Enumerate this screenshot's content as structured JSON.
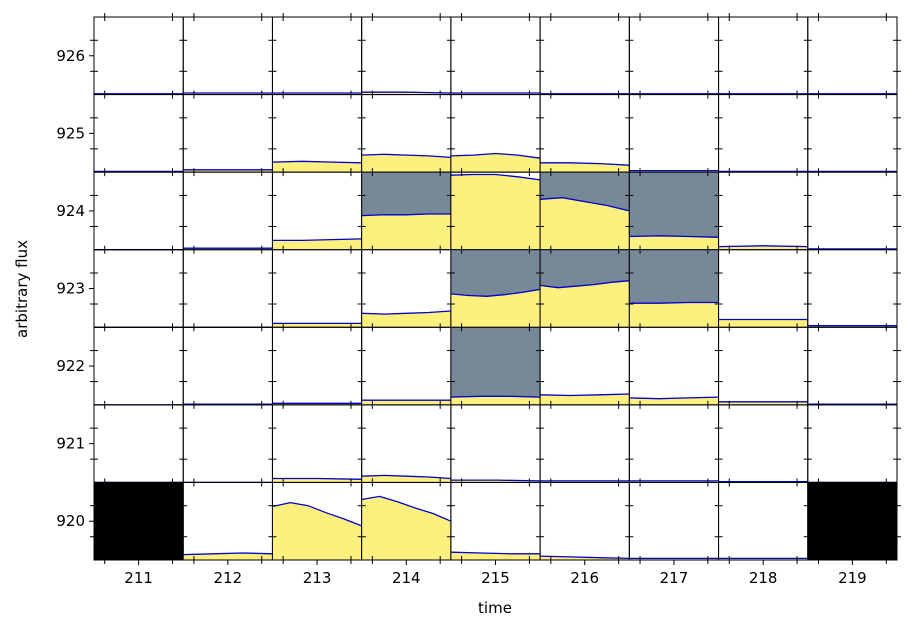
{
  "chart_data": {
    "type": "area",
    "description_role": "pixel-level flux grid",
    "xlabel": "time",
    "ylabel": "arbitrary flux",
    "x_tick_labels": [
      "211",
      "212",
      "213",
      "214",
      "215",
      "216",
      "217",
      "218",
      "219"
    ],
    "y_tick_labels": [
      "920",
      "921",
      "922",
      "923",
      "924",
      "925",
      "926"
    ],
    "columns": [
      211,
      212,
      213,
      214,
      215,
      216,
      217,
      218,
      219
    ],
    "rows": [
      926,
      925,
      924,
      923,
      922,
      921,
      920
    ],
    "colors": {
      "fill": "#fdf07e",
      "line": "#0000cc",
      "mask": "#778899",
      "nodata": "#000000",
      "frame": "#000000"
    },
    "cells": [
      {
        "row": 926,
        "col": 211,
        "mask": false,
        "nodata": false,
        "flux": [
          0.01,
          0.01
        ]
      },
      {
        "row": 926,
        "col": 212,
        "mask": false,
        "nodata": false,
        "flux": [
          0.02,
          0.02
        ]
      },
      {
        "row": 926,
        "col": 213,
        "mask": false,
        "nodata": false,
        "flux": [
          0.02,
          0.02
        ]
      },
      {
        "row": 926,
        "col": 214,
        "mask": false,
        "nodata": false,
        "flux": [
          0.03,
          0.03,
          0.02
        ]
      },
      {
        "row": 926,
        "col": 215,
        "mask": false,
        "nodata": false,
        "flux": [
          0.02,
          0.02
        ]
      },
      {
        "row": 926,
        "col": 216,
        "mask": false,
        "nodata": false,
        "flux": [
          0.01,
          0.01
        ]
      },
      {
        "row": 926,
        "col": 217,
        "mask": false,
        "nodata": false,
        "flux": [
          0.01,
          0.01
        ]
      },
      {
        "row": 926,
        "col": 218,
        "mask": false,
        "nodata": false,
        "flux": [
          0.01,
          0.01
        ]
      },
      {
        "row": 926,
        "col": 219,
        "mask": false,
        "nodata": false,
        "flux": [
          0.01,
          0.01
        ]
      },
      {
        "row": 925,
        "col": 211,
        "mask": false,
        "nodata": false,
        "flux": [
          0.01,
          0.01
        ]
      },
      {
        "row": 925,
        "col": 212,
        "mask": false,
        "nodata": false,
        "flux": [
          0.03,
          0.03
        ]
      },
      {
        "row": 925,
        "col": 213,
        "mask": false,
        "nodata": false,
        "flux": [
          0.13,
          0.14,
          0.13,
          0.12
        ]
      },
      {
        "row": 925,
        "col": 214,
        "mask": false,
        "nodata": false,
        "flux": [
          0.22,
          0.23,
          0.22,
          0.21,
          0.19
        ]
      },
      {
        "row": 925,
        "col": 215,
        "mask": false,
        "nodata": false,
        "flux": [
          0.21,
          0.22,
          0.24,
          0.22,
          0.18
        ]
      },
      {
        "row": 925,
        "col": 216,
        "mask": false,
        "nodata": false,
        "flux": [
          0.12,
          0.12,
          0.11,
          0.09
        ]
      },
      {
        "row": 925,
        "col": 217,
        "mask": false,
        "nodata": false,
        "flux": [
          0.02,
          0.02
        ]
      },
      {
        "row": 925,
        "col": 218,
        "mask": false,
        "nodata": false,
        "flux": [
          0.01,
          0.01
        ]
      },
      {
        "row": 925,
        "col": 219,
        "mask": false,
        "nodata": false,
        "flux": [
          0.01,
          0.01
        ]
      },
      {
        "row": 924,
        "col": 211,
        "mask": false,
        "nodata": false,
        "flux": [
          0.0,
          0.0
        ]
      },
      {
        "row": 924,
        "col": 212,
        "mask": false,
        "nodata": false,
        "flux": [
          0.02,
          0.02
        ]
      },
      {
        "row": 924,
        "col": 213,
        "mask": false,
        "nodata": false,
        "flux": [
          0.12,
          0.12,
          0.13,
          0.14
        ]
      },
      {
        "row": 924,
        "col": 214,
        "mask": true,
        "nodata": false,
        "flux": [
          0.44,
          0.45,
          0.45,
          0.46,
          0.46
        ]
      },
      {
        "row": 924,
        "col": 215,
        "mask": false,
        "nodata": false,
        "flux": [
          0.96,
          0.97,
          0.97,
          0.94,
          0.9
        ]
      },
      {
        "row": 924,
        "col": 216,
        "mask": true,
        "nodata": false,
        "flux": [
          0.65,
          0.67,
          0.62,
          0.57,
          0.5
        ]
      },
      {
        "row": 924,
        "col": 217,
        "mask": true,
        "nodata": false,
        "flux": [
          0.17,
          0.18,
          0.17,
          0.16
        ]
      },
      {
        "row": 924,
        "col": 218,
        "mask": false,
        "nodata": false,
        "flux": [
          0.04,
          0.05,
          0.04
        ]
      },
      {
        "row": 924,
        "col": 219,
        "mask": false,
        "nodata": false,
        "flux": [
          0.01,
          0.01
        ]
      },
      {
        "row": 923,
        "col": 211,
        "mask": false,
        "nodata": false,
        "flux": [
          0.0,
          0.0
        ]
      },
      {
        "row": 923,
        "col": 212,
        "mask": false,
        "nodata": false,
        "flux": [
          0.0,
          0.0
        ]
      },
      {
        "row": 923,
        "col": 213,
        "mask": false,
        "nodata": false,
        "flux": [
          0.05,
          0.05,
          0.05
        ]
      },
      {
        "row": 923,
        "col": 214,
        "mask": false,
        "nodata": false,
        "flux": [
          0.18,
          0.17,
          0.18,
          0.19,
          0.21
        ]
      },
      {
        "row": 923,
        "col": 215,
        "mask": true,
        "nodata": false,
        "flux": [
          0.43,
          0.41,
          0.4,
          0.42,
          0.45,
          0.49
        ]
      },
      {
        "row": 923,
        "col": 216,
        "mask": true,
        "nodata": false,
        "flux": [
          0.54,
          0.51,
          0.53,
          0.55,
          0.58,
          0.6
        ]
      },
      {
        "row": 923,
        "col": 217,
        "mask": true,
        "nodata": false,
        "flux": [
          0.31,
          0.31,
          0.32,
          0.32
        ]
      },
      {
        "row": 923,
        "col": 218,
        "mask": false,
        "nodata": false,
        "flux": [
          0.1,
          0.1,
          0.1
        ]
      },
      {
        "row": 923,
        "col": 219,
        "mask": false,
        "nodata": false,
        "flux": [
          0.02,
          0.02
        ]
      },
      {
        "row": 922,
        "col": 211,
        "mask": false,
        "nodata": false,
        "flux": [
          0.0,
          0.0
        ]
      },
      {
        "row": 922,
        "col": 212,
        "mask": false,
        "nodata": false,
        "flux": [
          0.01,
          0.01
        ]
      },
      {
        "row": 922,
        "col": 213,
        "mask": false,
        "nodata": false,
        "flux": [
          0.02,
          0.02
        ]
      },
      {
        "row": 922,
        "col": 214,
        "mask": false,
        "nodata": false,
        "flux": [
          0.06,
          0.06,
          0.06
        ]
      },
      {
        "row": 922,
        "col": 215,
        "mask": true,
        "nodata": false,
        "flux": [
          0.1,
          0.11,
          0.11,
          0.1
        ]
      },
      {
        "row": 922,
        "col": 216,
        "mask": false,
        "nodata": false,
        "flux": [
          0.13,
          0.12,
          0.13,
          0.14
        ]
      },
      {
        "row": 922,
        "col": 217,
        "mask": false,
        "nodata": false,
        "flux": [
          0.09,
          0.08,
          0.09,
          0.1
        ]
      },
      {
        "row": 922,
        "col": 218,
        "mask": false,
        "nodata": false,
        "flux": [
          0.04,
          0.04,
          0.04
        ]
      },
      {
        "row": 922,
        "col": 219,
        "mask": false,
        "nodata": false,
        "flux": [
          0.01,
          0.01
        ]
      },
      {
        "row": 921,
        "col": 211,
        "mask": false,
        "nodata": false,
        "flux": [
          0.0,
          0.0
        ]
      },
      {
        "row": 921,
        "col": 212,
        "mask": false,
        "nodata": false,
        "flux": [
          0.0,
          0.0
        ]
      },
      {
        "row": 921,
        "col": 213,
        "mask": false,
        "nodata": false,
        "flux": [
          0.05,
          0.05,
          0.04
        ]
      },
      {
        "row": 921,
        "col": 214,
        "mask": false,
        "nodata": false,
        "flux": [
          0.08,
          0.09,
          0.08,
          0.07,
          0.05
        ]
      },
      {
        "row": 921,
        "col": 215,
        "mask": false,
        "nodata": false,
        "flux": [
          0.03,
          0.03,
          0.02
        ]
      },
      {
        "row": 921,
        "col": 216,
        "mask": false,
        "nodata": false,
        "flux": [
          0.02,
          0.02
        ]
      },
      {
        "row": 921,
        "col": 217,
        "mask": false,
        "nodata": false,
        "flux": [
          0.02,
          0.02
        ]
      },
      {
        "row": 921,
        "col": 218,
        "mask": false,
        "nodata": false,
        "flux": [
          0.01,
          0.01
        ]
      },
      {
        "row": 921,
        "col": 219,
        "mask": false,
        "nodata": false,
        "flux": [
          0.0,
          0.0
        ]
      },
      {
        "row": 920,
        "col": 211,
        "mask": false,
        "nodata": true,
        "flux": []
      },
      {
        "row": 920,
        "col": 212,
        "mask": false,
        "nodata": false,
        "flux": [
          0.07,
          0.08,
          0.09,
          0.08
        ]
      },
      {
        "row": 920,
        "col": 213,
        "mask": false,
        "nodata": false,
        "flux": [
          0.69,
          0.74,
          0.7,
          0.61,
          0.53,
          0.44
        ]
      },
      {
        "row": 920,
        "col": 214,
        "mask": false,
        "nodata": false,
        "flux": [
          0.78,
          0.82,
          0.75,
          0.67,
          0.6,
          0.5
        ]
      },
      {
        "row": 920,
        "col": 215,
        "mask": false,
        "nodata": false,
        "flux": [
          0.1,
          0.09,
          0.08,
          0.08
        ]
      },
      {
        "row": 920,
        "col": 216,
        "mask": false,
        "nodata": false,
        "flux": [
          0.05,
          0.04,
          0.03,
          0.02
        ]
      },
      {
        "row": 920,
        "col": 217,
        "mask": false,
        "nodata": false,
        "flux": [
          0.02,
          0.02
        ]
      },
      {
        "row": 920,
        "col": 218,
        "mask": false,
        "nodata": false,
        "flux": [
          0.02,
          0.02
        ]
      },
      {
        "row": 920,
        "col": 219,
        "mask": false,
        "nodata": true,
        "flux": []
      }
    ]
  }
}
